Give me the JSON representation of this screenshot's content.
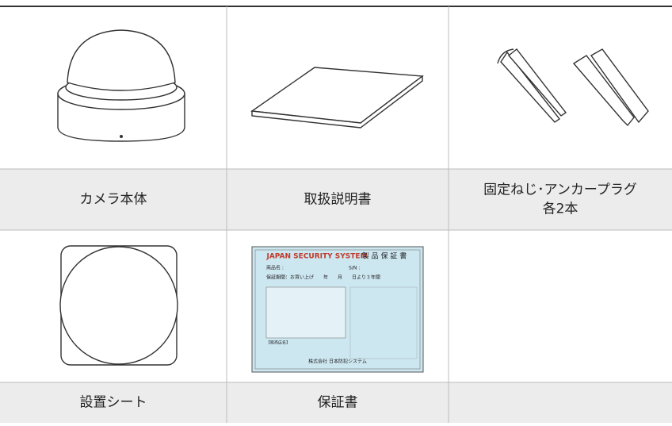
{
  "table": {
    "rows": [
      {
        "cells": [
          {
            "lines": [
              "カメラ本体"
            ]
          },
          {
            "lines": [
              "取扱説明書"
            ]
          },
          {
            "lines": [
              "固定ねじ･アンカープラグ",
              "各2本"
            ]
          }
        ]
      },
      {
        "cells": [
          {
            "lines": [
              "設置シート"
            ]
          },
          {
            "lines": [
              "保証書"
            ]
          }
        ]
      }
    ]
  },
  "warranty_card": {
    "brand": "JAPAN SECURITY SYSTEM",
    "title": "製 品 保 証 書",
    "product": "商品名 :",
    "serial": "S/N :",
    "period": "保証期間：お買い上げ　　年　　月　　日より３年間",
    "seller": "【販売店名】",
    "company": "株式会社 日本防犯システム"
  }
}
